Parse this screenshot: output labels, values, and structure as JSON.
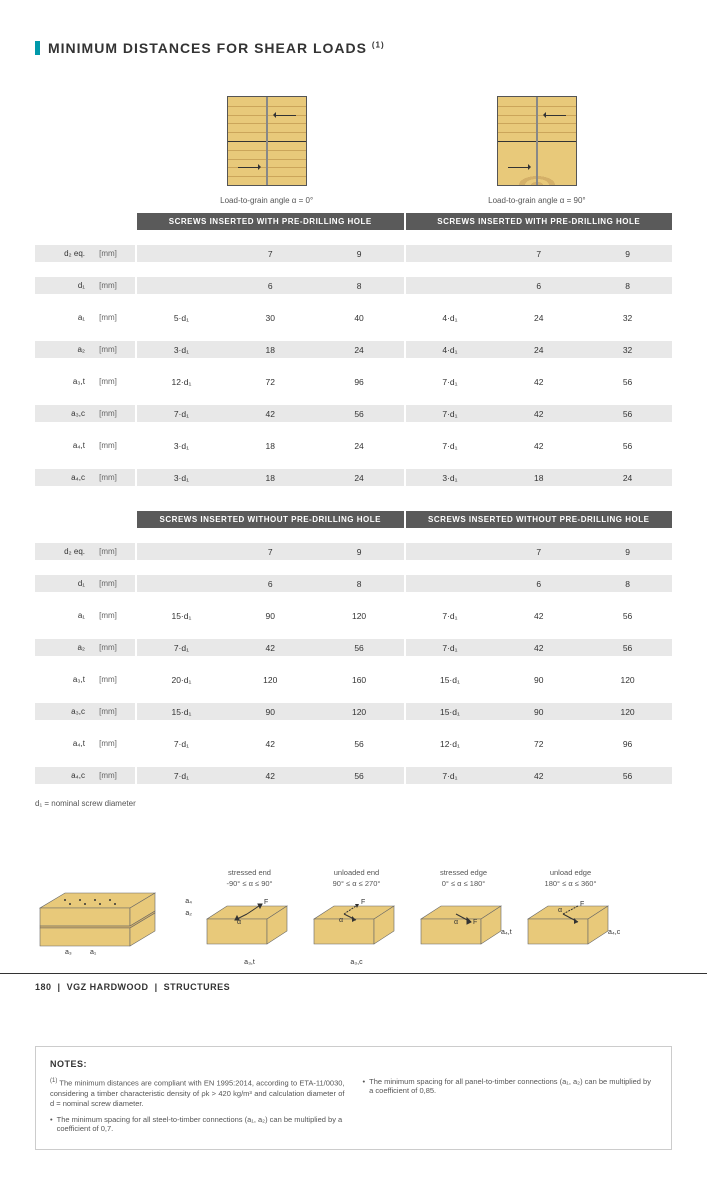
{
  "title": "MINIMUM DISTANCES FOR SHEAR LOADS",
  "title_note": "(1)",
  "diagrams": {
    "left_caption": "Load-to-grain angle α = 0°",
    "right_caption": "Load-to-grain angle α = 90°"
  },
  "table1": {
    "header": "SCREWS INSERTED WITH PRE-DRILLING HOLE",
    "rows": [
      {
        "sym": "d₂ eq.",
        "unit": "[mm]",
        "f": "",
        "l1": "7",
        "l2": "9",
        "rf": "",
        "r1": "7",
        "r2": "9",
        "grey": true
      },
      {
        "sym": "d₁",
        "unit": "[mm]",
        "f": "",
        "l1": "6",
        "l2": "8",
        "rf": "",
        "r1": "6",
        "r2": "8",
        "grey": true
      },
      {
        "sym": "a₁",
        "unit": "[mm]",
        "f": "5·d₁",
        "l1": "30",
        "l2": "40",
        "rf": "4·d₁",
        "r1": "24",
        "r2": "32",
        "grey": false
      },
      {
        "sym": "a₂",
        "unit": "[mm]",
        "f": "3·d₁",
        "l1": "18",
        "l2": "24",
        "rf": "4·d₁",
        "r1": "24",
        "r2": "32",
        "grey": true
      },
      {
        "sym": "a₃,t",
        "unit": "[mm]",
        "f": "12·d₁",
        "l1": "72",
        "l2": "96",
        "rf": "7·d₁",
        "r1": "42",
        "r2": "56",
        "grey": false
      },
      {
        "sym": "a₃,c",
        "unit": "[mm]",
        "f": "7·d₁",
        "l1": "42",
        "l2": "56",
        "rf": "7·d₁",
        "r1": "42",
        "r2": "56",
        "grey": true
      },
      {
        "sym": "a₄,t",
        "unit": "[mm]",
        "f": "3·d₁",
        "l1": "18",
        "l2": "24",
        "rf": "7·d₁",
        "r1": "42",
        "r2": "56",
        "grey": false
      },
      {
        "sym": "a₄,c",
        "unit": "[mm]",
        "f": "3·d₁",
        "l1": "18",
        "l2": "24",
        "rf": "3·d₁",
        "r1": "18",
        "r2": "24",
        "grey": true
      }
    ]
  },
  "table2": {
    "header": "SCREWS INSERTED WITHOUT PRE-DRILLING HOLE",
    "rows": [
      {
        "sym": "d₂ eq.",
        "unit": "[mm]",
        "f": "",
        "l1": "7",
        "l2": "9",
        "rf": "",
        "r1": "7",
        "r2": "9",
        "grey": true
      },
      {
        "sym": "d₁",
        "unit": "[mm]",
        "f": "",
        "l1": "6",
        "l2": "8",
        "rf": "",
        "r1": "6",
        "r2": "8",
        "grey": true
      },
      {
        "sym": "a₁",
        "unit": "[mm]",
        "f": "15·d₁",
        "l1": "90",
        "l2": "120",
        "rf": "7·d₁",
        "r1": "42",
        "r2": "56",
        "grey": false
      },
      {
        "sym": "a₂",
        "unit": "[mm]",
        "f": "7·d₁",
        "l1": "42",
        "l2": "56",
        "rf": "7·d₁",
        "r1": "42",
        "r2": "56",
        "grey": true
      },
      {
        "sym": "a₃,t",
        "unit": "[mm]",
        "f": "20·d₁",
        "l1": "120",
        "l2": "160",
        "rf": "15·d₁",
        "r1": "90",
        "r2": "120",
        "grey": false
      },
      {
        "sym": "a₃,c",
        "unit": "[mm]",
        "f": "15·d₁",
        "l1": "90",
        "l2": "120",
        "rf": "15·d₁",
        "r1": "90",
        "r2": "120",
        "grey": true
      },
      {
        "sym": "a₄,t",
        "unit": "[mm]",
        "f": "7·d₁",
        "l1": "42",
        "l2": "56",
        "rf": "12·d₁",
        "r1": "72",
        "r2": "96",
        "grey": false
      },
      {
        "sym": "a₄,c",
        "unit": "[mm]",
        "f": "7·d₁",
        "l1": "42",
        "l2": "56",
        "rf": "7·d₁",
        "r1": "42",
        "r2": "56",
        "grey": true
      }
    ]
  },
  "footnote_d": "d₁ = nominal screw diameter",
  "iso_labels": {
    "a1": "a₁",
    "a2": "a₂",
    "a3": "a₃",
    "a4": "a₄",
    "stressed_end_title": "stressed end",
    "stressed_end_range": "-90° ≤ α ≤ 90°",
    "stressed_end_sym": "a₃,t",
    "unloaded_end_title": "unloaded end",
    "unloaded_end_range": "90° ≤ α ≤ 270°",
    "unloaded_end_sym": "a₃,c",
    "stressed_edge_title": "stressed edge",
    "stressed_edge_range": "0° ≤ α ≤ 180°",
    "stressed_edge_sym": "a₄,t",
    "unload_edge_title": "unload edge",
    "unload_edge_range": "180° ≤ α ≤ 360°",
    "unload_edge_sym": "a₄,c"
  },
  "notes": {
    "title": "NOTES:",
    "n1": "The minimum distances are compliant with EN 1995:2014, according to ETA-11/0030, considering a timber characteristic density of ρk > 420 kg/m³ and calculation diameter of d = nominal screw diameter.",
    "n2": "The minimum spacing for all steel-to-timber connections (a₁, a₂) can be multiplied by a coefficient of 0,7.",
    "n3": "The minimum spacing for all panel-to-timber connections (a₁, a₂) can be multiplied by a coefficient of 0,85."
  },
  "footer": {
    "page": "180",
    "brand": "VGZ HARDWOOD",
    "section": "STRUCTURES"
  }
}
